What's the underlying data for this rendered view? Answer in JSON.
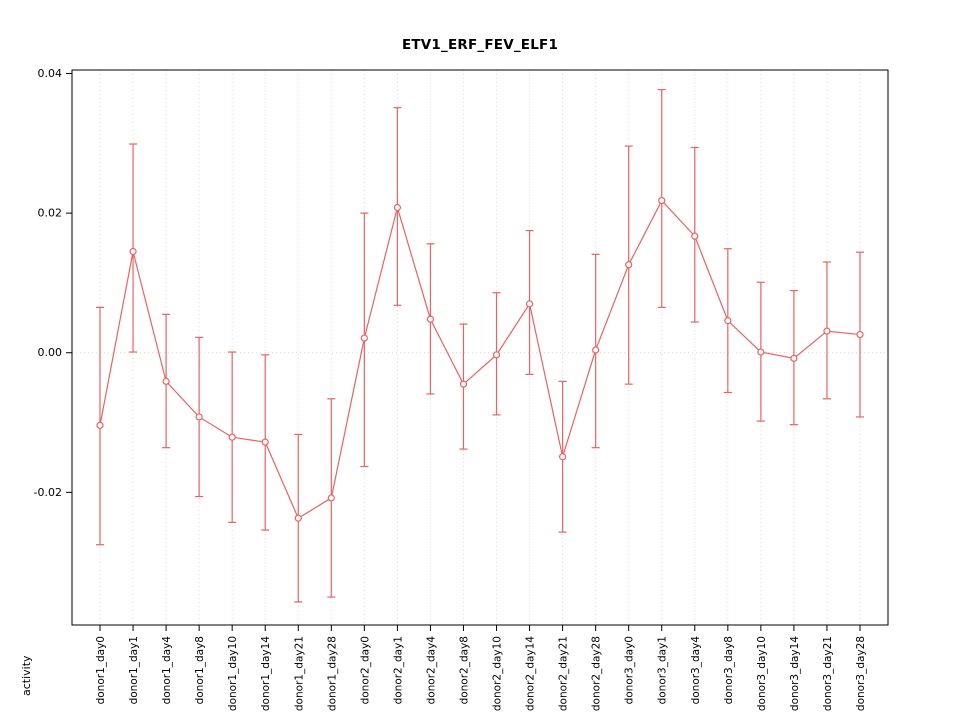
{
  "chart_data": {
    "type": "line",
    "title": "ETV1_ERF_FEV_ELF1",
    "xlabel": "",
    "ylabel": "activity",
    "legend": "none",
    "grid": "vertical dotted gridlines at each category, dotted horizontal line at y=0",
    "series_color": "#ee6161",
    "grid_color": "#d8d8d8",
    "point_style": "open-circle",
    "error_bars": true,
    "ylim": [
      -0.039,
      0.0405
    ],
    "yticks": [
      -0.02,
      0.0,
      0.02,
      0.04
    ],
    "ytick_labels": [
      "-0.02",
      "0.00",
      "0.02",
      "0.04"
    ],
    "categories": [
      "donor1_day0",
      "donor1_day1",
      "donor1_day4",
      "donor1_day8",
      "donor1_day10",
      "donor1_day14",
      "donor1_day21",
      "donor1_day28",
      "donor2_day0",
      "donor2_day1",
      "donor2_day4",
      "donor2_day8",
      "donor2_day10",
      "donor2_day14",
      "donor2_day21",
      "donor2_day28",
      "donor3_day0",
      "donor3_day1",
      "donor3_day4",
      "donor3_day8",
      "donor3_day10",
      "donor3_day14",
      "donor3_day21",
      "donor3_day28"
    ],
    "values": [
      -0.0104,
      0.0145,
      -0.0041,
      -0.0092,
      -0.0121,
      -0.0128,
      -0.0237,
      -0.0208,
      0.0021,
      0.0208,
      0.0048,
      -0.0045,
      -0.0003,
      0.007,
      -0.0149,
      0.0004,
      0.0126,
      0.0218,
      0.0167,
      0.0046,
      0.0001,
      -0.0008,
      0.0031,
      0.0026
    ],
    "error_high": [
      0.0065,
      0.0299,
      0.0055,
      0.0022,
      0.0001,
      -0.0003,
      -0.0117,
      -0.0066,
      0.02,
      0.0351,
      0.0156,
      0.0041,
      0.0086,
      0.0175,
      -0.0041,
      0.0141,
      0.0296,
      0.0377,
      0.0294,
      0.0149,
      0.0101,
      0.0089,
      0.013,
      0.0144
    ],
    "error_low": [
      -0.0275,
      0.0001,
      -0.0136,
      -0.0206,
      -0.0243,
      -0.0254,
      -0.0357,
      -0.035,
      -0.0163,
      0.0068,
      -0.0059,
      -0.0138,
      -0.0089,
      -0.0031,
      -0.0257,
      -0.0136,
      -0.0045,
      0.0065,
      0.0044,
      -0.0057,
      -0.0098,
      -0.0103,
      -0.0066,
      -0.0092
    ]
  }
}
